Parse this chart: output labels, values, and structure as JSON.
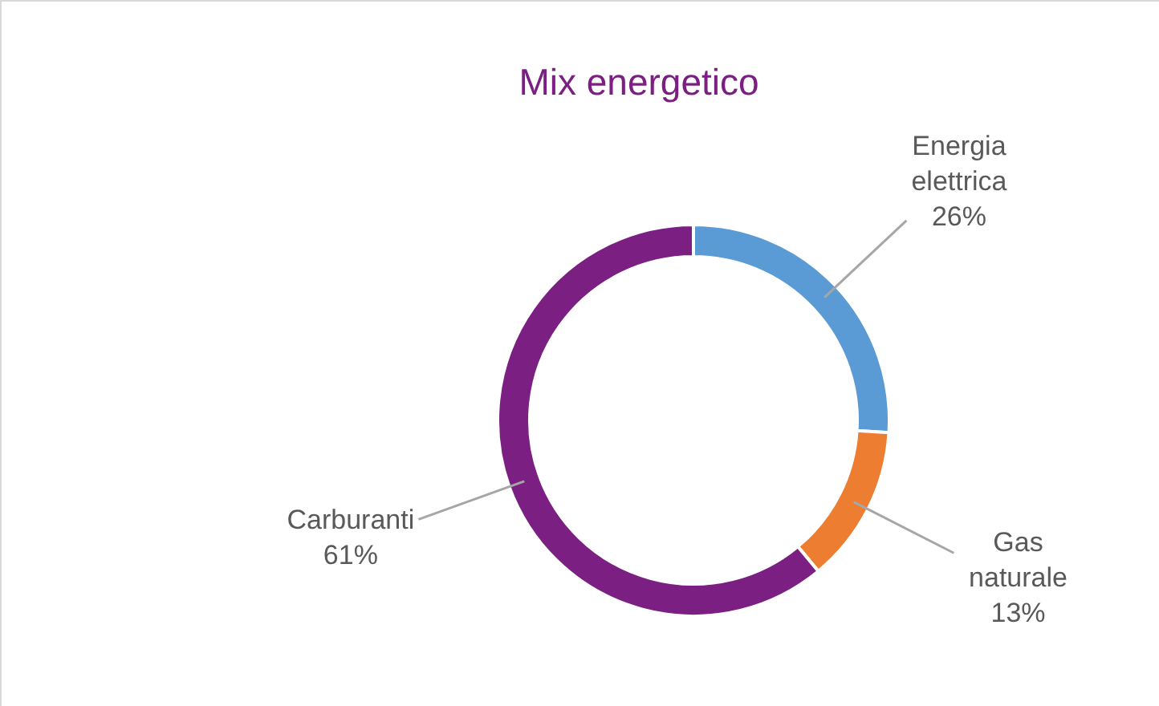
{
  "chart_data": {
    "type": "donut",
    "title": "Mix energetico",
    "categories": [
      "Energia elettrica",
      "Gas naturale",
      "Carburanti"
    ],
    "values": [
      26,
      13,
      61
    ],
    "value_labels": [
      "26%",
      "13%",
      "61%"
    ],
    "colors": [
      "#5b9bd5",
      "#ed7d31",
      "#7b1f82"
    ]
  }
}
